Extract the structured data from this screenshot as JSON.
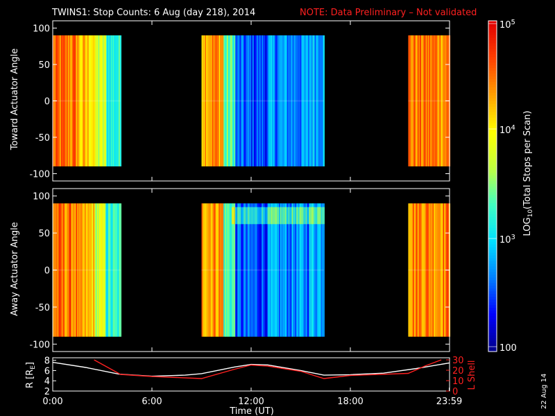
{
  "title": "TWINS1: Stop Counts:  6 Aug (day 218), 2014",
  "note": "NOTE: Data Preliminary – Not validated",
  "date_stamp": "22 Aug 14",
  "chart_data": [
    {
      "type": "heatmap",
      "ylabel": "Toward Actuator Angle",
      "yticks": [
        "100",
        "50",
        "0",
        "-50",
        "-100"
      ],
      "ylim": [
        -110,
        110
      ],
      "data_angle_range": [
        -90,
        90
      ],
      "time_segments_hours": [
        [
          0.0,
          4.1
        ],
        [
          9.0,
          16.4
        ],
        [
          21.5,
          24.0
        ]
      ]
    },
    {
      "type": "heatmap",
      "ylabel": "Away Actuator Angle",
      "yticks": [
        "100",
        "50",
        "0",
        "-50",
        "-100"
      ],
      "ylim": [
        -110,
        110
      ],
      "data_angle_range": [
        -90,
        90
      ],
      "time_segments_hours": [
        [
          0.0,
          4.1
        ],
        [
          9.0,
          16.4
        ],
        [
          21.5,
          24.0
        ]
      ]
    },
    {
      "type": "line",
      "ylabel_left": "R [R",
      "ylabel_left_sub": "E",
      "ylabel_left_end": "]",
      "ylabel_right": "L Shell",
      "yticks_left": [
        "2",
        "4",
        "6",
        "8"
      ],
      "yticks_right": [
        "0",
        "10",
        "20",
        "30"
      ],
      "xlabel": "Time (UT)",
      "xticks": [
        "0:00",
        "6:00",
        "12:00",
        "18:00",
        "23:59"
      ],
      "xtick_hours": [
        0,
        6,
        12,
        18,
        23.98
      ],
      "xlim": [
        0,
        24
      ],
      "ylim_left": [
        2,
        8.5
      ],
      "ylim_right": [
        0,
        32
      ],
      "series": [
        {
          "color": "#ffffff",
          "x": [
            0,
            2,
            4,
            6,
            8,
            9,
            11,
            12,
            13,
            15,
            16.4,
            18,
            20,
            22,
            24
          ],
          "y": [
            7.6,
            6.6,
            5.3,
            4.9,
            5.1,
            5.4,
            6.7,
            7.2,
            7.1,
            6.0,
            5.1,
            5.2,
            5.5,
            6.4,
            7.5
          ]
        },
        {
          "color": "#ff2020",
          "axis": "right",
          "x": [
            2.5,
            4.1,
            6,
            9,
            11,
            12,
            13,
            15,
            16.4,
            18,
            21.5,
            22.5,
            23.5
          ],
          "y": [
            30,
            16,
            14,
            12,
            21,
            25,
            24,
            19,
            12,
            15,
            17,
            24,
            30
          ]
        }
      ]
    }
  ],
  "colorbar": {
    "label": "LOG",
    "label_sub": "10",
    "label_rest": "(Total Stops per Scan)",
    "ticks": [
      {
        "text": "10",
        "exp": "5"
      },
      {
        "text": "10",
        "exp": "4"
      },
      {
        "text": "10",
        "exp": "3"
      },
      {
        "text": "100",
        "exp": ""
      }
    ],
    "colors": [
      "#00008c",
      "#0000ff",
      "#0080ff",
      "#00e0ff",
      "#40ffc0",
      "#c0ff40",
      "#ffff00",
      "#ffa000",
      "#ff4000",
      "#e00000"
    ]
  }
}
